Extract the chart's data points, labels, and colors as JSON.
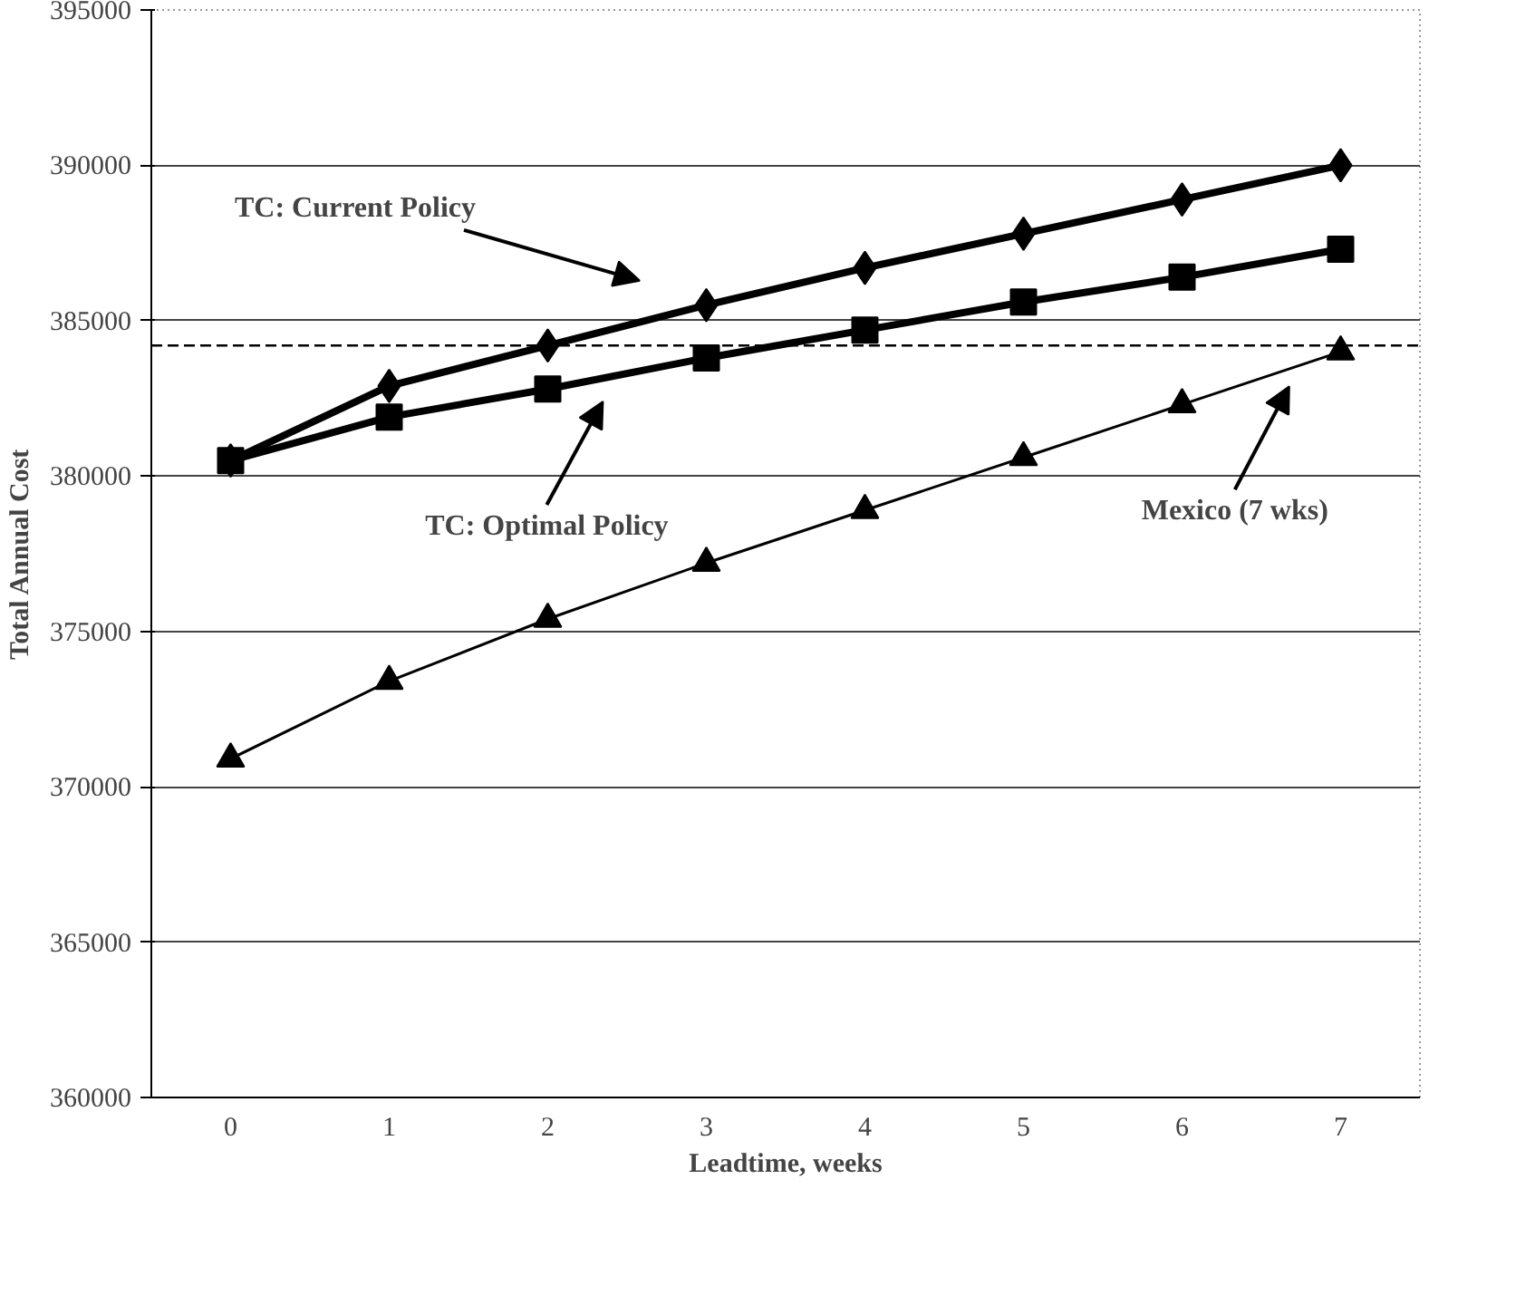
{
  "chart_data": {
    "type": "line",
    "xlabel": "Leadtime, weeks",
    "ylabel": "Total Annual Cost",
    "categories": [
      "0",
      "1",
      "2",
      "3",
      "4",
      "5",
      "6",
      "7"
    ],
    "ylim": [
      360000,
      395000
    ],
    "yticks": [
      360000,
      365000,
      370000,
      375000,
      380000,
      385000,
      390000,
      395000
    ],
    "grid": "y",
    "series": [
      {
        "color": "#000000",
        "marker": "diamond",
        "values": [
          380500,
          382900,
          384200,
          385500,
          386700,
          387800,
          388900,
          390000
        ]
      },
      {
        "color": "#000000",
        "marker": "square",
        "values": [
          380500,
          381900,
          382800,
          383800,
          384700,
          385600,
          386400,
          387300
        ]
      },
      {
        "color": "#000000",
        "marker": "triangle",
        "values": [
          370900,
          373400,
          375400,
          377200,
          378900,
          380600,
          382300,
          384000
        ]
      }
    ],
    "ref_lines": [
      {
        "axis": "y",
        "value": 384200,
        "line_style": "dashed",
        "color": "#000000"
      }
    ],
    "annotations": [
      "TC: Current Policy",
      "TC: Optimal Policy",
      "Mexico (7 wks)"
    ]
  }
}
